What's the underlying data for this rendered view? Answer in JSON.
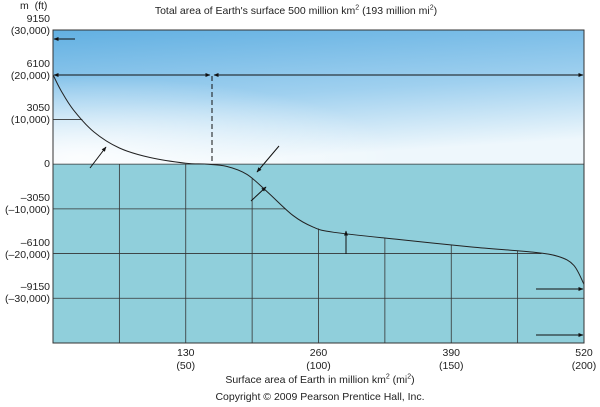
{
  "chart_data": {
    "type": "area",
    "title": "Total area of Earth's surface 500 million km",
    "title_sup": "2",
    "title_rest": " (193 million mi",
    "title_sup2": "2",
    "title_end": ")",
    "ylabel": "m  (ft)",
    "xlabel": "Surface area of Earth in million km",
    "xlabel_sup": "2",
    "xlabel_rest": " (mi",
    "xlabel_sup2": "2",
    "xlabel_end": ")",
    "y_ticks": [
      {
        "m": 9150,
        "m_label": "9150",
        "ft_label": "(30,000)"
      },
      {
        "m": 6100,
        "m_label": "6100",
        "ft_label": "(20,000)"
      },
      {
        "m": 3050,
        "m_label": "3050",
        "ft_label": "(10,000)"
      },
      {
        "m": 0,
        "m_label": "0",
        "ft_label": ""
      },
      {
        "m": -3050,
        "m_label": "–3050",
        "ft_label": "(–10,000)"
      },
      {
        "m": -6100,
        "m_label": "–6100",
        "ft_label": "(–20,000)"
      },
      {
        "m": -9150,
        "m_label": "–9150",
        "ft_label": "(–30,000)"
      }
    ],
    "x_ticks": [
      {
        "km": 130,
        "km_label": "130",
        "mi_label": "(50)"
      },
      {
        "km": 260,
        "km_label": "260",
        "mi_label": "(100)"
      },
      {
        "km": 390,
        "km_label": "390",
        "mi_label": "(150)"
      },
      {
        "km": 520,
        "km_label": "520",
        "mi_label": "(200)"
      }
    ],
    "xlim": [
      0,
      520
    ],
    "ylim": [
      -12200,
      9150
    ],
    "grid": true,
    "curve": [
      [
        0,
        6100
      ],
      [
        8,
        5000
      ],
      [
        20,
        3700
      ],
      [
        40,
        2200
      ],
      [
        65,
        1100
      ],
      [
        95,
        450
      ],
      [
        130,
        60
      ],
      [
        150,
        0
      ],
      [
        170,
        -150
      ],
      [
        190,
        -700
      ],
      [
        210,
        -1900
      ],
      [
        235,
        -3500
      ],
      [
        255,
        -4300
      ],
      [
        275,
        -4650
      ],
      [
        340,
        -5150
      ],
      [
        410,
        -5650
      ],
      [
        470,
        -6000
      ],
      [
        495,
        -6300
      ],
      [
        510,
        -6900
      ],
      [
        520,
        -8200
      ]
    ],
    "colors": {
      "sky_top": "#62b0e2",
      "sky_bottom": "#d8ecf8",
      "ocean": "#90cfdb",
      "land_top": "#ecdcc6",
      "land_bottom": "#c9a27a"
    }
  },
  "footer": {
    "copyright": "Copyright © 2009 Pearson Prentice Hall, Inc."
  }
}
